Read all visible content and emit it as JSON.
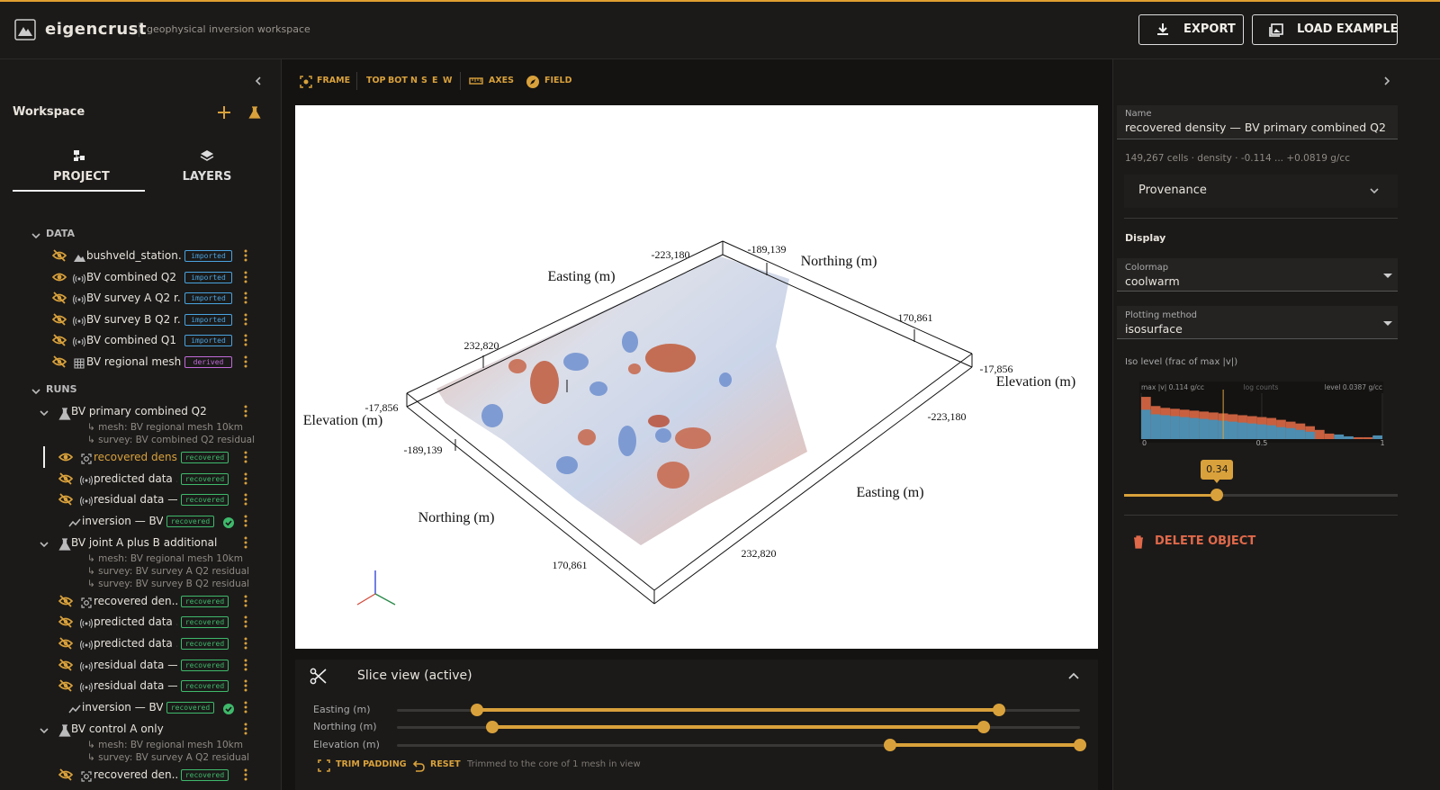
{
  "header": {
    "brand": "eigencrust",
    "tagline": "geophysical inversion workspace",
    "buttons": [
      "EXPORT",
      "LOAD EXAMPLE"
    ]
  },
  "sidebar": {
    "title": "Workspace",
    "tabs": [
      "PROJECT",
      "LAYERS"
    ],
    "data": {
      "heading": "DATA",
      "items": [
        {
          "label": "bushveld_station...",
          "badge": "imported",
          "visible": false,
          "icon": "terrain"
        },
        {
          "label": "BV combined Q2 ...",
          "badge": "imported",
          "visible": true,
          "icon": "signal"
        },
        {
          "label": "BV survey A Q2 r...",
          "badge": "imported",
          "visible": false,
          "icon": "signal"
        },
        {
          "label": "BV survey B Q2 r...",
          "badge": "imported",
          "visible": false,
          "icon": "signal"
        },
        {
          "label": "BV combined Q1 ...",
          "badge": "imported",
          "visible": false,
          "icon": "signal"
        },
        {
          "label": "BV regional mesh ...",
          "badge": "derived",
          "visible": false,
          "icon": "grid"
        }
      ]
    },
    "runs": {
      "heading": "RUNS",
      "items": [
        {
          "name": "BV primary combined Q2",
          "sources": [
            "↳ mesh: BV regional mesh 10km",
            "↳ survey: BV combined Q2 residual"
          ],
          "items": [
            {
              "label": "recovered densit",
              "badge": "recovered",
              "visible": true,
              "icon": "mesh",
              "active": true
            },
            {
              "label": "predicted data ...",
              "badge": "recovered",
              "visible": false,
              "icon": "signal"
            },
            {
              "label": "residual data —...",
              "badge": "recovered",
              "visible": false,
              "icon": "signal"
            },
            {
              "label": "inversion — BV...",
              "badge": "recovered",
              "icon": "chart",
              "checked": true
            }
          ]
        },
        {
          "name": "BV joint A plus B additional",
          "sources": [
            "↳ mesh: BV regional mesh 10km",
            "↳ survey: BV survey A Q2 residual",
            "↳ survey: BV survey B Q2 residual"
          ],
          "items": [
            {
              "label": "recovered den...",
              "badge": "recovered",
              "visible": false,
              "icon": "mesh"
            },
            {
              "label": "predicted data ...",
              "badge": "recovered",
              "visible": false,
              "icon": "signal"
            },
            {
              "label": "predicted data ...",
              "badge": "recovered",
              "visible": false,
              "icon": "signal"
            },
            {
              "label": "residual data — ...",
              "badge": "recovered",
              "visible": false,
              "icon": "signal"
            },
            {
              "label": "residual data — ...",
              "badge": "recovered",
              "visible": false,
              "icon": "signal"
            },
            {
              "label": "inversion — BV...",
              "badge": "recovered",
              "icon": "chart",
              "checked": true
            }
          ]
        },
        {
          "name": "BV control A only",
          "sources": [
            "↳ mesh: BV regional mesh 10km",
            "↳ survey: BV survey A Q2 residual"
          ],
          "items": [
            {
              "label": "recovered den...",
              "badge": "recovered",
              "visible": false,
              "icon": "mesh"
            }
          ]
        }
      ]
    }
  },
  "toolbar": {
    "frame": "FRAME",
    "views": [
      "TOP",
      "BOT",
      "N",
      "S",
      "E",
      "W"
    ],
    "axes": "AXES",
    "field": "FIELD"
  },
  "viewport": {
    "axis_labels": [
      "Easting (m)",
      "Northing (m)",
      "Elevation (m)",
      "Elevation (m)",
      "Easting (m)",
      "Northing (m)"
    ],
    "tick_labels": [
      "-223,180",
      "-189,139",
      "170,861",
      "-17,856",
      "232,820",
      "-17,856",
      "-189,139",
      "-223,180",
      "170,861",
      "232,820"
    ]
  },
  "slice": {
    "title": "Slice view (active)",
    "xlim": [
      0,
      1
    ],
    "sliders": [
      {
        "label": "Easting (m)",
        "range": [
          0.117,
          0.881
        ]
      },
      {
        "label": "Northing (m)",
        "range": [
          0.139,
          0.859
        ]
      },
      {
        "label": "Elevation (m)",
        "range": [
          0.722,
          1
        ]
      }
    ],
    "trim": "TRIM PADDING",
    "reset": "RESET",
    "status": "Trimmed to the core of 1 mesh in view"
  },
  "properties": {
    "name_label": "Name",
    "name": "recovered density — BV primary combined Q2",
    "summary": "149,267 cells · density · -0.114 ... +0.0819 g/cc",
    "provenance": "Provenance",
    "display": "Display",
    "colormap_label": "Colormap",
    "colormap": "coolwarm",
    "method_label": "Plotting method",
    "method": "isosurface",
    "iso_label": "Iso level (frac of max |v|)",
    "histogram": {
      "type": "histogram",
      "max_label": "max |v| 0.114 g/cc",
      "y_label": "log counts",
      "level_label": "level 0.0387 g/cc",
      "bins": [
        0,
        0.04,
        0.08,
        0.12,
        0.16,
        0.2,
        0.24,
        0.28,
        0.32,
        0.36,
        0.4,
        0.44,
        0.48,
        0.52,
        0.56,
        0.6,
        0.64,
        0.68,
        0.72,
        0.76,
        0.8,
        0.84,
        0.88,
        0.92,
        0.96,
        1
      ],
      "series": [
        {
          "color": "#c8603f",
          "values": [
            4.6,
            3.6,
            3.4,
            3.3,
            3.2,
            3.1,
            3.0,
            2.9,
            2.8,
            2.7,
            2.6,
            2.5,
            2.4,
            2.3,
            2.1,
            1.9,
            1.7,
            1.4,
            1.0,
            0.6,
            0.3,
            0.2,
            0.2,
            0.2,
            0.3
          ]
        },
        {
          "color": "#4c8db0",
          "values": [
            3.2,
            2.7,
            2.6,
            2.5,
            2.4,
            2.3,
            2.2,
            2.1,
            2.0,
            1.9,
            1.8,
            1.7,
            1.6,
            1.5,
            1.3,
            1.2,
            1.0,
            0.8,
            0,
            0,
            0.5,
            0.3,
            0,
            0,
            0.4
          ]
        }
      ],
      "xlim": [
        0,
        1
      ],
      "xticks": [
        0,
        0.5,
        1
      ],
      "ylim": [
        0,
        5
      ]
    },
    "iso_level": 0.34,
    "delete": "DELETE OBJECT"
  }
}
